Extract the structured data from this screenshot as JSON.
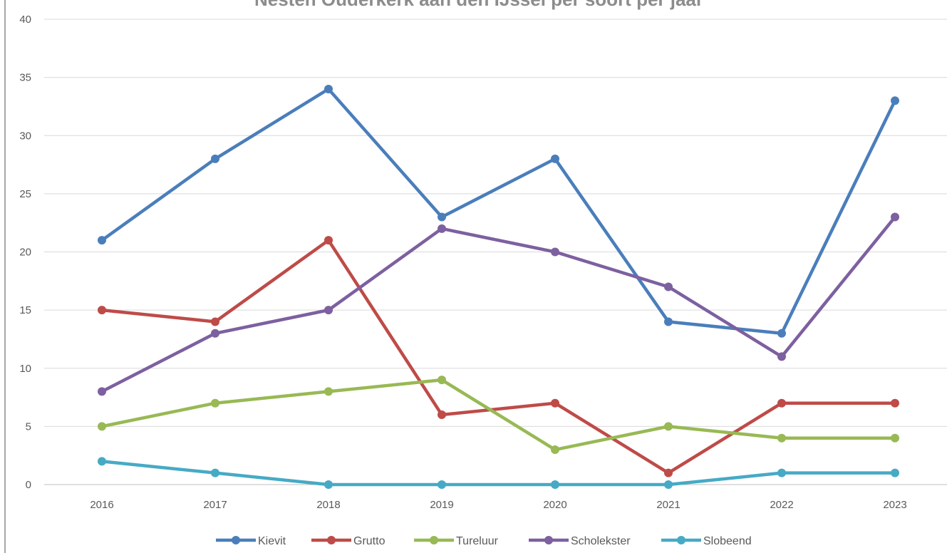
{
  "chart_data": {
    "type": "line",
    "title": "Nesten Ouderkerk aan den IJssel per soort per jaar",
    "xlabel": "",
    "ylabel": "",
    "categories": [
      "2016",
      "2017",
      "2018",
      "2019",
      "2020",
      "2021",
      "2022",
      "2023"
    ],
    "ylim": [
      0,
      40
    ],
    "yticks": [
      0,
      5,
      10,
      15,
      20,
      25,
      30,
      35,
      40
    ],
    "grid": true,
    "legend_position": "bottom",
    "series": [
      {
        "name": "Kievit",
        "color": "#4a7ebb",
        "values": [
          21,
          28,
          34,
          23,
          28,
          14,
          13,
          33
        ]
      },
      {
        "name": "Grutto",
        "color": "#be4b48",
        "values": [
          15,
          14,
          21,
          6,
          7,
          1,
          7,
          7
        ]
      },
      {
        "name": "Tureluur",
        "color": "#98b954",
        "values": [
          5,
          7,
          8,
          9,
          3,
          5,
          4,
          4
        ]
      },
      {
        "name": "Scholekster",
        "color": "#7d60a0",
        "values": [
          8,
          13,
          15,
          22,
          20,
          17,
          11,
          23
        ]
      },
      {
        "name": "Slobeend",
        "color": "#46aac5",
        "values": [
          2,
          1,
          0,
          0,
          0,
          0,
          1,
          1
        ]
      }
    ]
  }
}
